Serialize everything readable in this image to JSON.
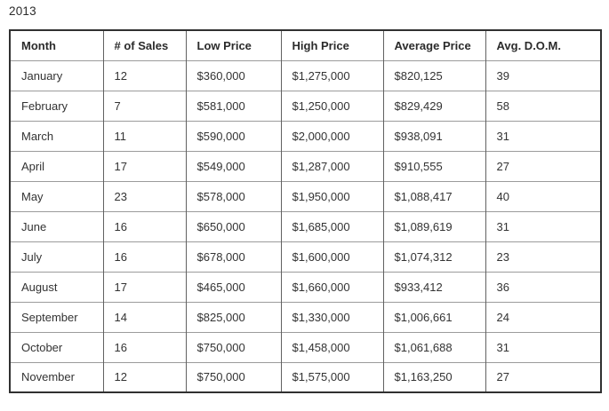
{
  "page": {
    "title": "2013"
  },
  "chart_data": {
    "type": "table",
    "title": "2013",
    "columns": [
      "Month",
      "# of Sales",
      "Low Price",
      "High Price",
      "Average Price",
      "Avg. D.O.M."
    ],
    "rows": [
      [
        "January",
        "12",
        "$360,000",
        "$1,275,000",
        "$820,125",
        "39"
      ],
      [
        "February",
        "7",
        "$581,000",
        "$1,250,000",
        "$829,429",
        "58"
      ],
      [
        "March",
        "11",
        "$590,000",
        "$2,000,000",
        "$938,091",
        "31"
      ],
      [
        "April",
        "17",
        "$549,000",
        "$1,287,000",
        "$910,555",
        "27"
      ],
      [
        "May",
        "23",
        "$578,000",
        "$1,950,000",
        "$1,088,417",
        "40"
      ],
      [
        "June",
        "16",
        "$650,000",
        "$1,685,000",
        "$1,089,619",
        "31"
      ],
      [
        "July",
        "16",
        "$678,000",
        "$1,600,000",
        "$1,074,312",
        "23"
      ],
      [
        "August",
        "17",
        "$465,000",
        "$1,660,000",
        "$933,412",
        "36"
      ],
      [
        "September",
        "14",
        "$825,000",
        "$1,330,000",
        "$1,006,661",
        "24"
      ],
      [
        "October",
        "16",
        "$750,000",
        "$1,458,000",
        "$1,061,688",
        "31"
      ],
      [
        "November",
        "12",
        "$750,000",
        "$1,575,000",
        "$1,163,250",
        "27"
      ]
    ],
    "layout": {
      "header_bold": true,
      "outer_border_color": "#303030",
      "inner_border_color": "#9b9b9b",
      "text_color": "#333333",
      "background_color": "#ffffff"
    }
  }
}
